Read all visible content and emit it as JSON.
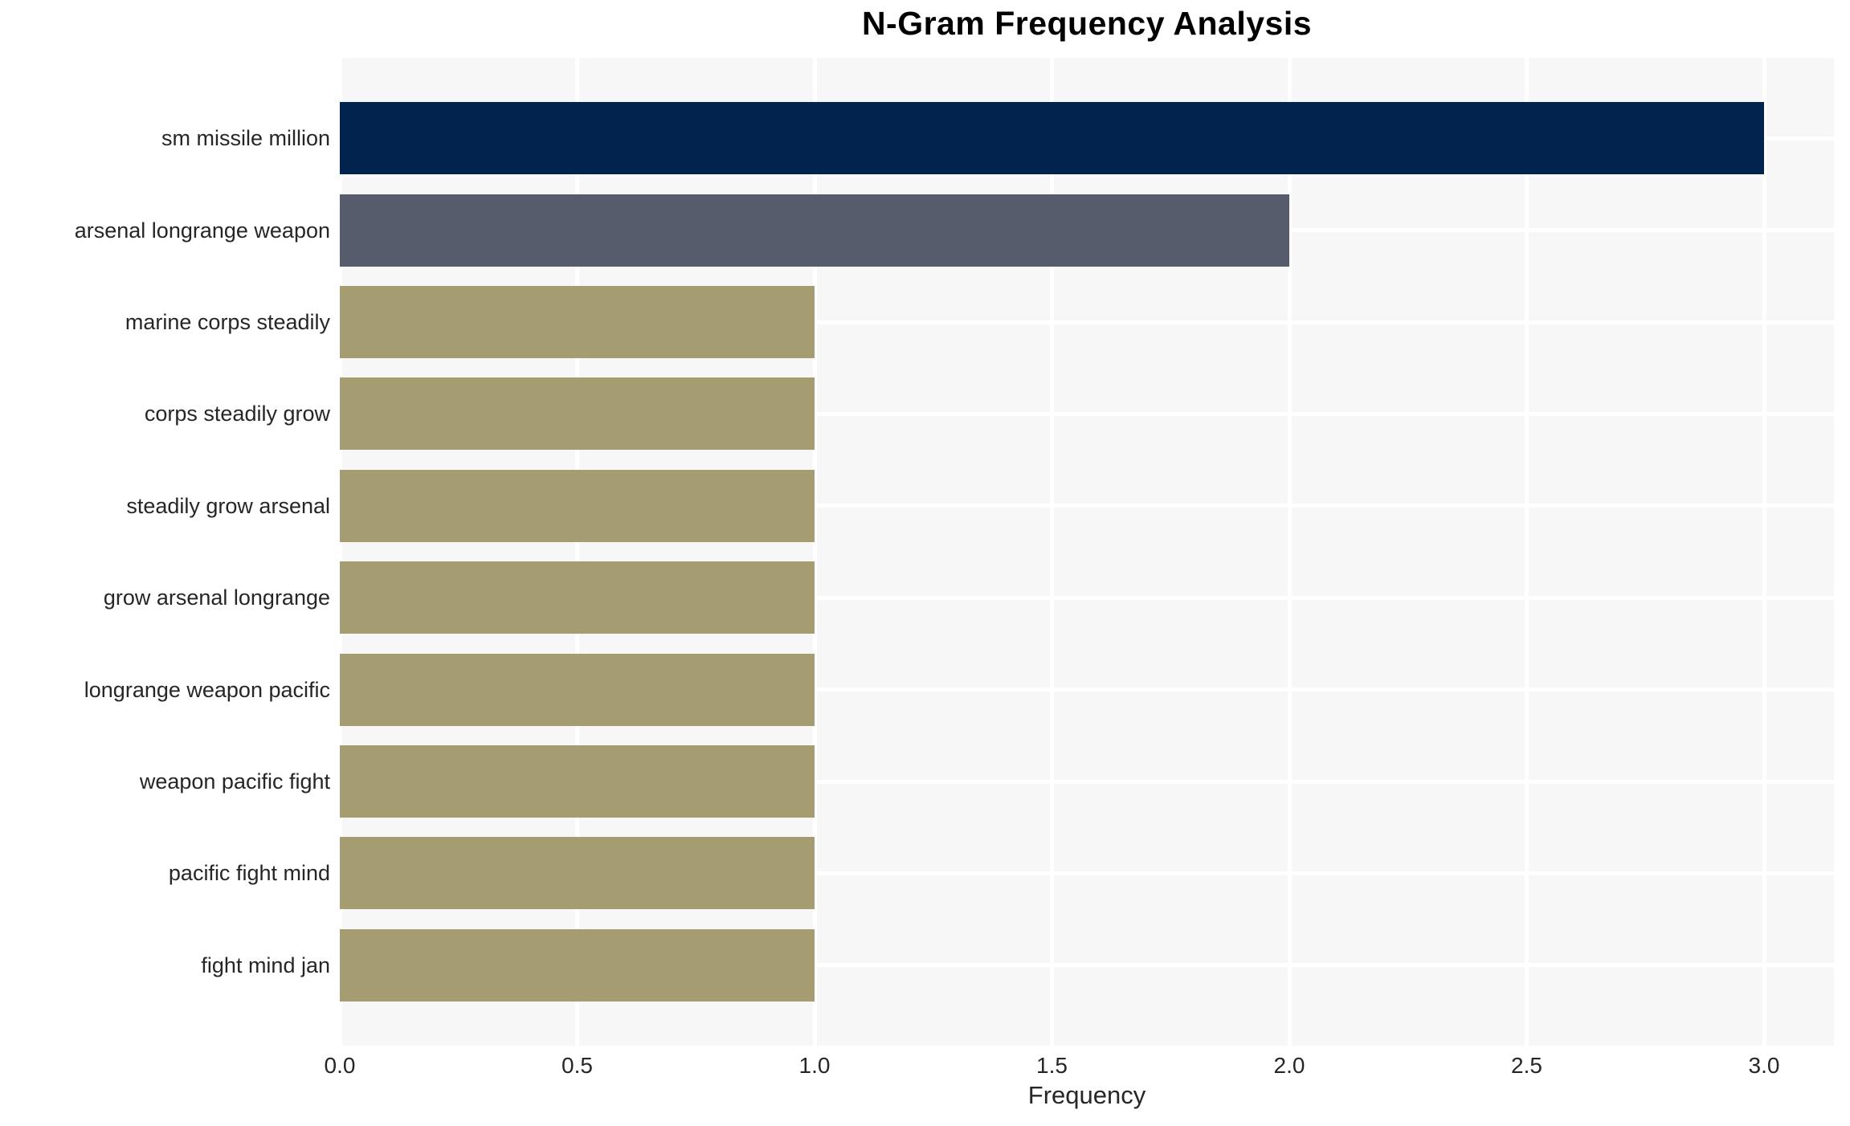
{
  "chart_data": {
    "type": "bar",
    "orientation": "horizontal",
    "title": "N-Gram Frequency Analysis",
    "xlabel": "Frequency",
    "ylabel": "",
    "categories": [
      "sm missile million",
      "arsenal longrange weapon",
      "marine corps steadily",
      "corps steadily grow",
      "steadily grow arsenal",
      "grow arsenal longrange",
      "longrange weapon pacific",
      "weapon pacific fight",
      "pacific fight mind",
      "fight mind jan"
    ],
    "values": [
      3,
      2,
      1,
      1,
      1,
      1,
      1,
      1,
      1,
      1
    ],
    "bar_colors": [
      "#02234d",
      "#565c6b",
      "#a69c72",
      "#a69c72",
      "#a69c72",
      "#a69c72",
      "#a69c72",
      "#a69c72",
      "#a69c72",
      "#a69c72"
    ],
    "xticks": [
      "0.0",
      "0.5",
      "1.0",
      "1.5",
      "2.0",
      "2.5",
      "3.0"
    ],
    "xtick_values": [
      0,
      0.5,
      1,
      1.5,
      2,
      2.5,
      3
    ],
    "xlim": [
      0,
      3.147
    ],
    "grid": true,
    "legend": false,
    "plot_background": "#f7f7f8",
    "gridline_color": "#ffffff",
    "text_color": "#262626",
    "title_color": "#000000"
  }
}
